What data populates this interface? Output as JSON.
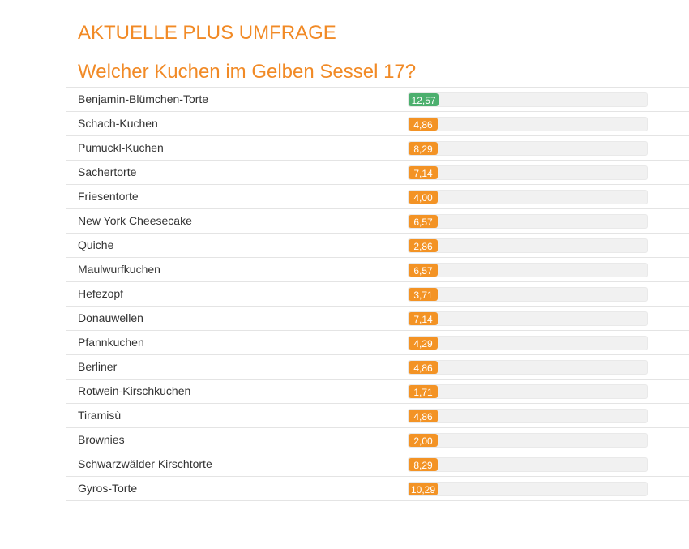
{
  "survey": {
    "section_title": "AKTUELLE PLUS UMFRAGE",
    "question": "Welcher Kuchen im Gelben Sessel 17?"
  },
  "colors": {
    "accent": "#f18a26",
    "leader": "#4caf6e",
    "bar_orange": "#f39325",
    "track": "#f1f1f1"
  },
  "options": [
    {
      "label": "Benjamin-Blümchen-Torte",
      "value": "12,57",
      "percent": 12.57,
      "leader": true
    },
    {
      "label": "Schach-Kuchen",
      "value": "4,86",
      "percent": 4.86
    },
    {
      "label": "Pumuckl-Kuchen",
      "value": "8,29",
      "percent": 8.29
    },
    {
      "label": "Sachertorte",
      "value": "7,14",
      "percent": 7.14
    },
    {
      "label": "Friesentorte",
      "value": "4,00",
      "percent": 4.0
    },
    {
      "label": "New York Cheesecake",
      "value": "6,57",
      "percent": 6.57
    },
    {
      "label": "Quiche",
      "value": "2,86",
      "percent": 2.86
    },
    {
      "label": "Maulwurfkuchen",
      "value": "6,57",
      "percent": 6.57
    },
    {
      "label": "Hefezopf",
      "value": "3,71",
      "percent": 3.71
    },
    {
      "label": "Donauwellen",
      "value": "7,14",
      "percent": 7.14
    },
    {
      "label": "Pfannkuchen",
      "value": "4,29",
      "percent": 4.29
    },
    {
      "label": "Berliner",
      "value": "4,86",
      "percent": 4.86
    },
    {
      "label": "Rotwein-Kirschkuchen",
      "value": "1,71",
      "percent": 1.71
    },
    {
      "label": "Tiramisù",
      "value": "4,86",
      "percent": 4.86
    },
    {
      "label": "Brownies",
      "value": "2,00",
      "percent": 2.0
    },
    {
      "label": "Schwarzwälder Kirschtorte",
      "value": "8,29",
      "percent": 8.29
    },
    {
      "label": "Gyros-Torte",
      "value": "10,29",
      "percent": 10.29
    }
  ]
}
